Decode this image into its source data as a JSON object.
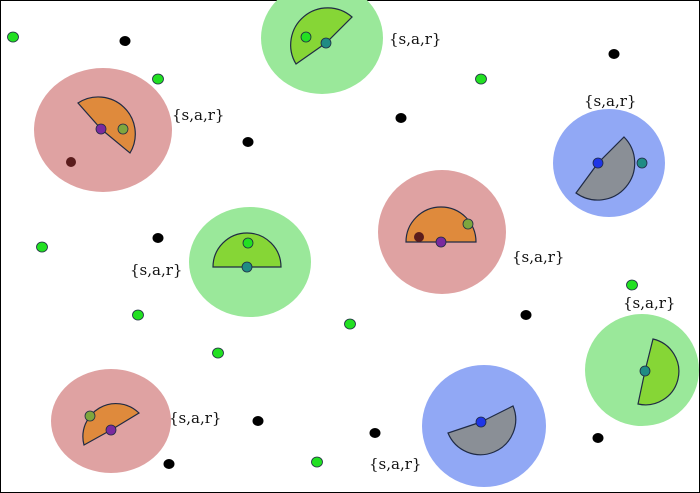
{
  "colors": {
    "background": "#ffffff",
    "frame": "#000000",
    "red_zone": "#dfa2a2",
    "green_zone": "#9ae89a",
    "blue_zone": "#91a8f5",
    "orange_sector": "#df8a3c",
    "green_sector": "#86d636",
    "gray_sector": "#8a8f96",
    "outline": "#1f2a44",
    "black_dot": "#000000",
    "green_dot": "#22e022",
    "dark_dot": "#5a1c1c",
    "olive_dot": "#7ea63e",
    "purple_dot": "#7a2a9e",
    "teal_dot": "#1f8c84",
    "blue_dot": "#1f36e6"
  },
  "agent_label": "{s,a,r}",
  "agents": [
    {
      "zone": "red",
      "sector": "orange",
      "label": "{s,a,r}"
    },
    {
      "zone": "green",
      "sector": "green",
      "label": "{s,a,r}"
    },
    {
      "zone": "red",
      "sector": "orange",
      "label": "{s,a,r}"
    },
    {
      "zone": "blue",
      "sector": "gray",
      "label": "{s,a,r}"
    },
    {
      "zone": "green",
      "sector": "green",
      "label": "{s,a,r}"
    },
    {
      "zone": "red",
      "sector": "orange",
      "label": "{s,a,r}"
    },
    {
      "zone": "green",
      "sector": "green",
      "label": "{s,a,r}"
    },
    {
      "zone": "blue",
      "sector": "gray",
      "label": "{s,a,r}"
    }
  ]
}
